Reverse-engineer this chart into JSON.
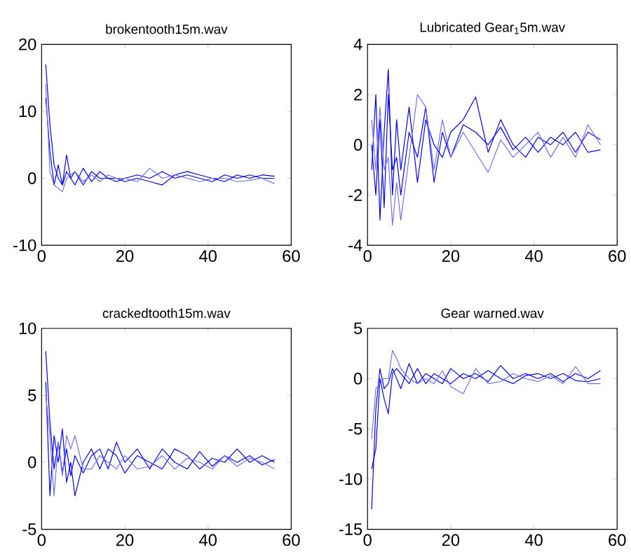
{
  "chart_data": [
    {
      "type": "line",
      "title": "brokentooth15m.wav",
      "xlim": [
        0,
        60
      ],
      "xticks": [
        0,
        20,
        40,
        60
      ],
      "ylim": [
        -10,
        20
      ],
      "yticks": [
        -10,
        0,
        10,
        20
      ],
      "x": [
        1,
        2,
        3,
        4,
        5,
        6,
        7,
        8,
        10,
        12,
        14,
        16,
        18,
        20,
        23,
        26,
        29,
        32,
        35,
        38,
        41,
        44,
        47,
        50,
        53,
        56
      ],
      "series": [
        {
          "color": "#0000ff",
          "values": [
            17,
            8,
            2,
            0,
            -1,
            1,
            0,
            1,
            -1,
            1,
            0,
            0,
            -0.5,
            0,
            0.5,
            0,
            1,
            0,
            0.5,
            0,
            -0.5,
            0.5,
            0,
            0.5,
            0,
            0
          ]
        },
        {
          "color": "#0000ff",
          "values": [
            12,
            4,
            -1,
            2,
            -1,
            3.5,
            0,
            -1,
            1.5,
            -0.5,
            1,
            0,
            0,
            -0.5,
            0,
            -0.5,
            -1,
            0.5,
            1,
            0.5,
            0,
            -0.5,
            0.5,
            0,
            0.5,
            0.3
          ]
        },
        {
          "color": "#6e6eff",
          "values": [
            14,
            1,
            -1,
            -1.5,
            -2,
            0,
            0.5,
            1,
            -0.5,
            0.5,
            -0.5,
            0.5,
            0,
            0,
            -0.5,
            1.5,
            0,
            0.5,
            0,
            -0.5,
            0,
            0,
            -0.5,
            -0.3,
            0,
            -0.8
          ]
        }
      ]
    },
    {
      "type": "line",
      "title": "Lubricated Gear$_{1}$5m.wav",
      "xlim": [
        0,
        60
      ],
      "xticks": [
        0,
        20,
        40,
        60
      ],
      "ylim": [
        -4,
        4
      ],
      "yticks": [
        -4,
        -2,
        0,
        2,
        4
      ],
      "x": [
        1,
        2,
        3,
        4,
        5,
        6,
        7,
        8,
        10,
        12,
        14,
        16,
        18,
        20,
        23,
        26,
        29,
        32,
        35,
        38,
        41,
        44,
        47,
        50,
        53,
        56
      ],
      "series": [
        {
          "color": "#0000ff",
          "values": [
            -1,
            2,
            -3,
            0.5,
            3,
            -2,
            1,
            -1,
            1.5,
            -1.5,
            1,
            0,
            -0.5,
            0.5,
            1,
            1.9,
            -0.3,
            1,
            0,
            -0.5,
            0.3,
            0,
            0.5,
            -0.3,
            0.5,
            0.2
          ]
        },
        {
          "color": "#0000ff",
          "values": [
            0,
            -2,
            1,
            -2.5,
            2,
            -1,
            -0.5,
            -2,
            0.5,
            -0.5,
            1.5,
            -1.5,
            0.5,
            -0.5,
            0.8,
            0.5,
            0,
            0.7,
            -0.2,
            0.3,
            -0.3,
            0.3,
            0,
            0.5,
            -0.3,
            -0.2
          ]
        },
        {
          "color": "#6e6eff",
          "values": [
            1,
            -1,
            1.5,
            -1,
            -0.5,
            -3.2,
            -1.5,
            -3,
            -0.5,
            2,
            1.5,
            -1,
            1,
            -0.5,
            0.5,
            -0.3,
            -1.1,
            0.2,
            -0.5,
            0,
            0.5,
            -0.5,
            0.3,
            -0.5,
            0.8,
            0
          ]
        }
      ]
    },
    {
      "type": "line",
      "title": "crackedtooth15m.wav",
      "xlim": [
        0,
        60
      ],
      "xticks": [
        0,
        20,
        40,
        60
      ],
      "ylim": [
        -5,
        10
      ],
      "yticks": [
        -5,
        0,
        5,
        10
      ],
      "x": [
        1,
        2,
        3,
        4,
        5,
        6,
        7,
        8,
        10,
        12,
        14,
        16,
        18,
        20,
        23,
        26,
        29,
        32,
        35,
        38,
        41,
        44,
        47,
        50,
        53,
        56
      ],
      "series": [
        {
          "color": "#0000ff",
          "values": [
            8.3,
            3,
            -0.5,
            1.5,
            -0.8,
            1,
            -1,
            0.5,
            -0.8,
            0.5,
            1,
            -0.5,
            1.5,
            0,
            1,
            -0.5,
            1,
            0,
            -0.5,
            0.8,
            -0.3,
            0.5,
            0,
            0.5,
            -0.2,
            0.2
          ]
        },
        {
          "color": "#0000ff",
          "values": [
            6,
            -2.5,
            2,
            0,
            2.5,
            -1.5,
            0,
            -2.5,
            0,
            1,
            -0.5,
            1,
            0.5,
            -0.8,
            0.5,
            0,
            -0.5,
            1,
            0.5,
            -0.5,
            0.3,
            0,
            1,
            0,
            0.5,
            0
          ]
        },
        {
          "color": "#6e6eff",
          "values": [
            5,
            2,
            -2.5,
            1.5,
            -1,
            2,
            1,
            2,
            -0.5,
            -0.5,
            0.5,
            0,
            -0.5,
            0.5,
            -0.5,
            -0.3,
            0.5,
            -0.5,
            0.3,
            0,
            -0.5,
            0.5,
            -0.3,
            0.3,
            0,
            -0.5
          ]
        }
      ]
    },
    {
      "type": "line",
      "title": "Gear warned.wav",
      "xlim": [
        0,
        60
      ],
      "xticks": [
        0,
        20,
        40,
        60
      ],
      "ylim": [
        -15,
        5
      ],
      "yticks": [
        -15,
        -10,
        -5,
        0,
        5
      ],
      "x": [
        1,
        2,
        3,
        4,
        5,
        6,
        7,
        8,
        10,
        12,
        14,
        16,
        18,
        20,
        23,
        26,
        29,
        32,
        35,
        38,
        41,
        44,
        47,
        50,
        53,
        56
      ],
      "series": [
        {
          "color": "#0000ff",
          "values": [
            -13,
            -3,
            1,
            -1,
            -0.5,
            1,
            0,
            -1,
            1.5,
            -0.5,
            0.5,
            0,
            -0.5,
            1,
            0,
            0.5,
            -0.3,
            1.3,
            0,
            0.5,
            0,
            0.5,
            -0.3,
            0.5,
            0,
            0.8
          ]
        },
        {
          "color": "#0000ff",
          "values": [
            -9,
            -7,
            0,
            -2,
            -3.5,
            0.5,
            1,
            0.5,
            -0.5,
            1,
            -0.5,
            0.5,
            0,
            -0.5,
            0.5,
            0,
            0.8,
            0,
            -0.5,
            0.3,
            0.5,
            0,
            0.5,
            -0.2,
            -0.3,
            0
          ]
        },
        {
          "color": "#6e6eff",
          "values": [
            -6,
            -1,
            -0.5,
            0,
            0,
            2.8,
            2,
            1,
            0,
            -0.5,
            0,
            -0.5,
            0.8,
            -0.8,
            -1.5,
            1,
            -0.5,
            -0.3,
            0.5,
            0,
            -0.3,
            0.3,
            -0.5,
            1.2,
            -0.5,
            -0.5
          ]
        }
      ]
    }
  ]
}
